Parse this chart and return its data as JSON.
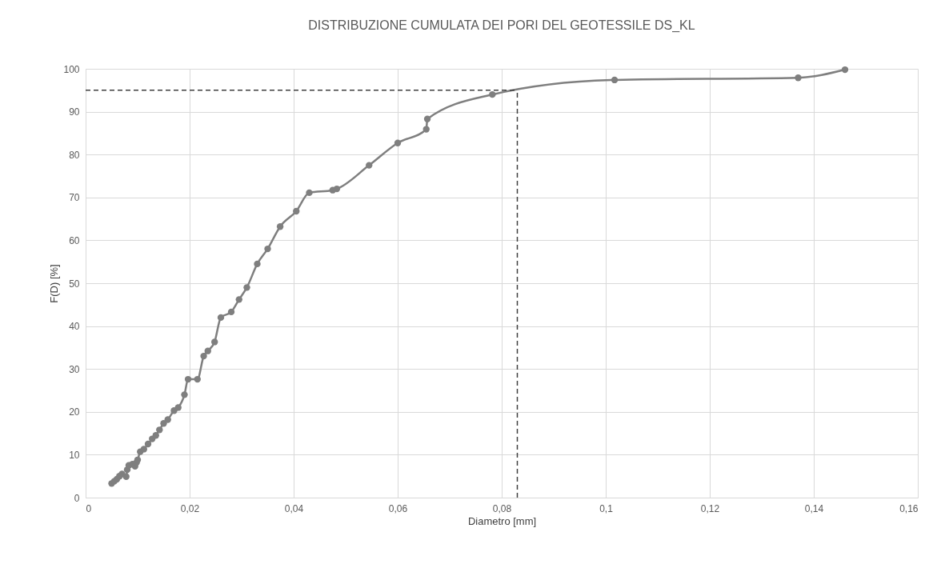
{
  "chart_data": {
    "type": "line",
    "title": "DISTRIBUZIONE CUMULATA DEI PORI DEL GEOTESSILE DS_KL",
    "xlabel": "Diametro [mm]",
    "ylabel": "F(D) [%]",
    "x": [
      0.005,
      0.0055,
      0.006,
      0.0065,
      0.007,
      0.0078,
      0.008,
      0.0083,
      0.009,
      0.0095,
      0.0098,
      0.01,
      0.0105,
      0.0112,
      0.012,
      0.0128,
      0.0135,
      0.0142,
      0.015,
      0.0158,
      0.017,
      0.0178,
      0.019,
      0.0197,
      0.0215,
      0.0227,
      0.0235,
      0.0248,
      0.026,
      0.028,
      0.0295,
      0.031,
      0.033,
      0.035,
      0.0374,
      0.0405,
      0.043,
      0.0475,
      0.0483,
      0.0545,
      0.06,
      0.0655,
      0.0657,
      0.0782,
      0.1017,
      0.137,
      0.146
    ],
    "series": [
      {
        "color": "#7f7f7f",
        "values": [
          3.3,
          3.8,
          4.3,
          5,
          5.5,
          4.9,
          6.5,
          7.5,
          7.8,
          7.3,
          8.2,
          8.8,
          10.7,
          11.3,
          12.5,
          13.7,
          14.5,
          15.8,
          17.3,
          18.2,
          20.3,
          21,
          24,
          27.6,
          27.6,
          33,
          34.2,
          36.3,
          42,
          43.3,
          46.2,
          49,
          54.5,
          58,
          63.2,
          66.8,
          71.1,
          71.7,
          72,
          77.5,
          82.7,
          85.9,
          88.3,
          94,
          97.4,
          97.9,
          99.8
        ]
      }
    ],
    "marker": "circle",
    "line_style": "solid",
    "grid": true,
    "xlim": [
      0,
      0.16
    ],
    "xticks": [
      0,
      {
        "value": 0.02,
        "label": "0,02"
      },
      {
        "value": 0.04,
        "label": "0,04"
      },
      {
        "value": 0.06,
        "label": "0,06"
      },
      {
        "value": 0.08,
        "label": "0,08"
      },
      {
        "value": 0.1,
        "label": "0,1"
      },
      {
        "value": 0.12,
        "label": "0,12"
      },
      {
        "value": 0.14,
        "label": "0,14"
      },
      {
        "value": 0.16,
        "label": "0,16"
      }
    ],
    "ylim": [
      0,
      100
    ],
    "yticks": [
      0,
      10,
      20,
      30,
      40,
      50,
      60,
      70,
      80,
      90,
      100
    ],
    "ref_lines": [
      {
        "axis": "y",
        "value": 95,
        "line_style": "dashed",
        "color": "#404040"
      },
      {
        "axis": "x",
        "value": 0.083,
        "line_style": "dashed",
        "color": "#404040"
      }
    ]
  }
}
